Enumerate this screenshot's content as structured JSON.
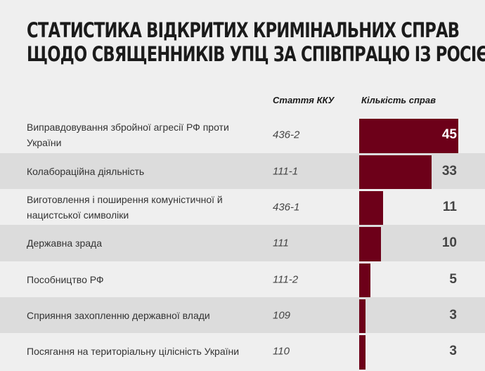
{
  "title_lines": [
    "СТАТИСТИКА ВІДКРИТИХ КРИМІНАЛЬНИХ СПРАВ",
    "ЩОДО СВЯЩЕННИКІВ УПЦ ЗА СПІВПРАЦЮ ІЗ РОСІЄЮ"
  ],
  "chart_data": {
    "type": "bar",
    "orientation": "horizontal",
    "title": "Статистика відкритих кримінальних справ щодо священників УПЦ за співпрацю із Росією",
    "columns": [
      "Стаття ККУ",
      "Кількість справ"
    ],
    "bar_color": "#6d0019",
    "rows": [
      {
        "category": "Виправдовування збройної агресії РФ проти України",
        "article": "436-2",
        "value": 45
      },
      {
        "category": "Колабораційна діяльність",
        "article": "111-1",
        "value": 33
      },
      {
        "category": "Виготовлення і поширення комуністичної й нацистської символіки",
        "article": "436-1",
        "value": 11
      },
      {
        "category": "Державна зрада",
        "article": "111",
        "value": 10
      },
      {
        "category": "Пособництво РФ",
        "article": "111-2",
        "value": 5
      },
      {
        "category": "Сприяння захопленню державної влади",
        "article": "109",
        "value": 3
      },
      {
        "category": "Посягання на територіальну цілісність України",
        "article": "110",
        "value": 3
      }
    ],
    "xlim": [
      0,
      45
    ]
  }
}
